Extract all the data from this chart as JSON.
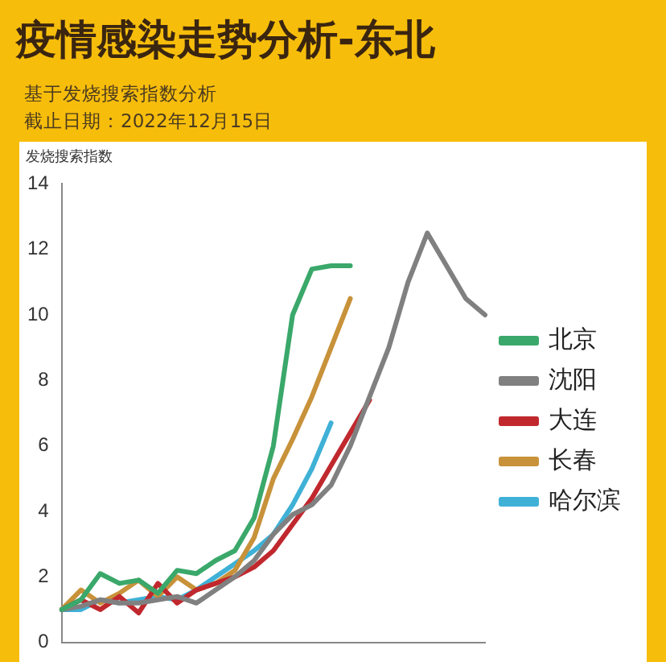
{
  "chart_data": {
    "type": "line",
    "title": "疫情感染走势分析-东北",
    "subtitle": "基于发烧搜索指数分析",
    "annotations": [
      "截止日期：2022年12月15日"
    ],
    "ylabel": "发烧搜索指数",
    "categories": [
      null,
      null,
      null,
      null,
      null,
      null,
      null,
      null,
      null,
      null,
      null,
      null,
      null,
      null,
      null,
      null,
      null,
      null,
      null,
      null,
      null,
      null,
      null
    ],
    "series": [
      {
        "name": "北京",
        "color": "#3aa86a",
        "values": [
          1.0,
          1.3,
          2.1,
          1.8,
          1.9,
          1.5,
          2.2,
          2.1,
          2.5,
          2.8,
          3.8,
          6.0,
          10.0,
          11.4,
          11.5,
          11.5,
          null,
          null,
          null,
          null,
          null,
          null,
          null
        ]
      },
      {
        "name": "沈阳",
        "color": "#808080",
        "values": [
          1.0,
          1.1,
          1.3,
          1.2,
          1.2,
          1.3,
          1.4,
          1.2,
          1.6,
          2.0,
          2.5,
          3.3,
          3.9,
          4.2,
          4.8,
          6.0,
          7.5,
          9.0,
          11.0,
          12.5,
          11.5,
          10.5,
          10.0
        ]
      },
      {
        "name": "大连",
        "color": "#c0282e",
        "values": [
          1.0,
          1.3,
          1.0,
          1.4,
          0.9,
          1.8,
          1.2,
          1.6,
          1.8,
          2.0,
          2.3,
          2.8,
          3.6,
          4.4,
          5.4,
          6.4,
          7.4,
          null,
          null,
          null,
          null,
          null,
          null
        ]
      },
      {
        "name": "长春",
        "color": "#c8923a",
        "values": [
          1.0,
          1.6,
          1.2,
          1.5,
          1.9,
          1.4,
          2.0,
          1.6,
          1.8,
          2.2,
          3.2,
          5.0,
          6.2,
          7.5,
          9.0,
          10.5,
          null,
          null,
          null,
          null,
          null,
          null,
          null
        ]
      },
      {
        "name": "哈尔滨",
        "color": "#3fb1d6",
        "values": [
          1.0,
          1.0,
          1.3,
          1.2,
          1.3,
          1.4,
          1.3,
          1.6,
          2.0,
          2.4,
          2.8,
          3.3,
          4.2,
          5.3,
          6.7,
          null,
          null,
          null,
          null,
          null,
          null,
          null,
          null
        ]
      }
    ],
    "ylim": [
      0,
      14
    ],
    "yticks": [
      0,
      2,
      4,
      6,
      8,
      10,
      12,
      14
    ],
    "grid": false,
    "legend": "right",
    "tick_labels": "y",
    "marker": "none",
    "line_style": "solid"
  }
}
